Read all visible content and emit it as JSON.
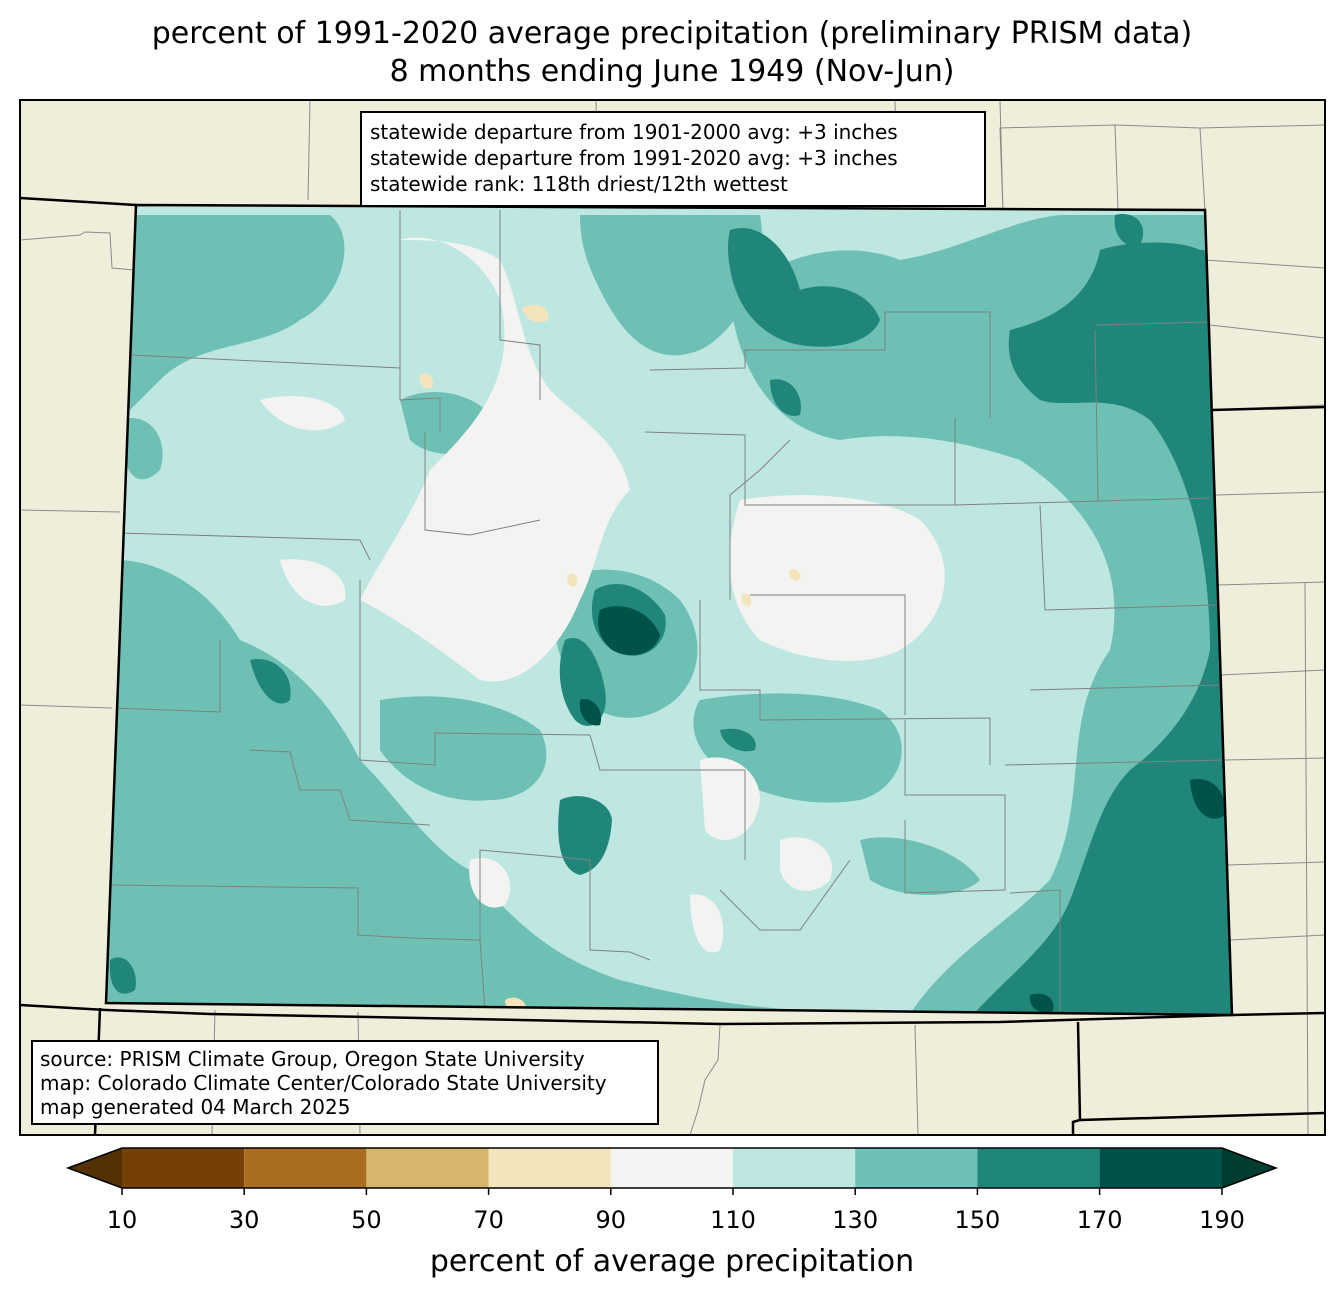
{
  "title": {
    "line1": "percent of 1991-2020 average precipitation (preliminary PRISM data)",
    "line2": "8 months ending June 1949 (Nov-Jun)"
  },
  "stats": {
    "line1": "statewide departure from 1901-2000 avg: +3 inches",
    "line2": "statewide departure from 1991-2020 avg: +3 inches",
    "line3": "statewide rank: 118th driest/12th wettest"
  },
  "source": {
    "line1": "source: PRISM Climate Group, Oregon State University",
    "line2": "map: Colorado Climate Center/Colorado State University",
    "line3": "map generated 04 March 2025"
  },
  "colorbar": {
    "label": "percent of average precipitation",
    "ticks": [
      "10",
      "30",
      "50",
      "70",
      "90",
      "110",
      "130",
      "150",
      "170",
      "190"
    ],
    "under_color": "#543005",
    "over_color": "#003c30",
    "colors": [
      "#744006",
      "#a96d22",
      "#d8b56c",
      "#f3e4bc",
      "#f3f4f2",
      "#bfe7e2",
      "#6dc0b3",
      "#21867a",
      "#01534a"
    ]
  },
  "map": {
    "region": "Colorado",
    "background_color": "#efeedb",
    "state_fill_dominant": "#6dc0b3"
  }
}
